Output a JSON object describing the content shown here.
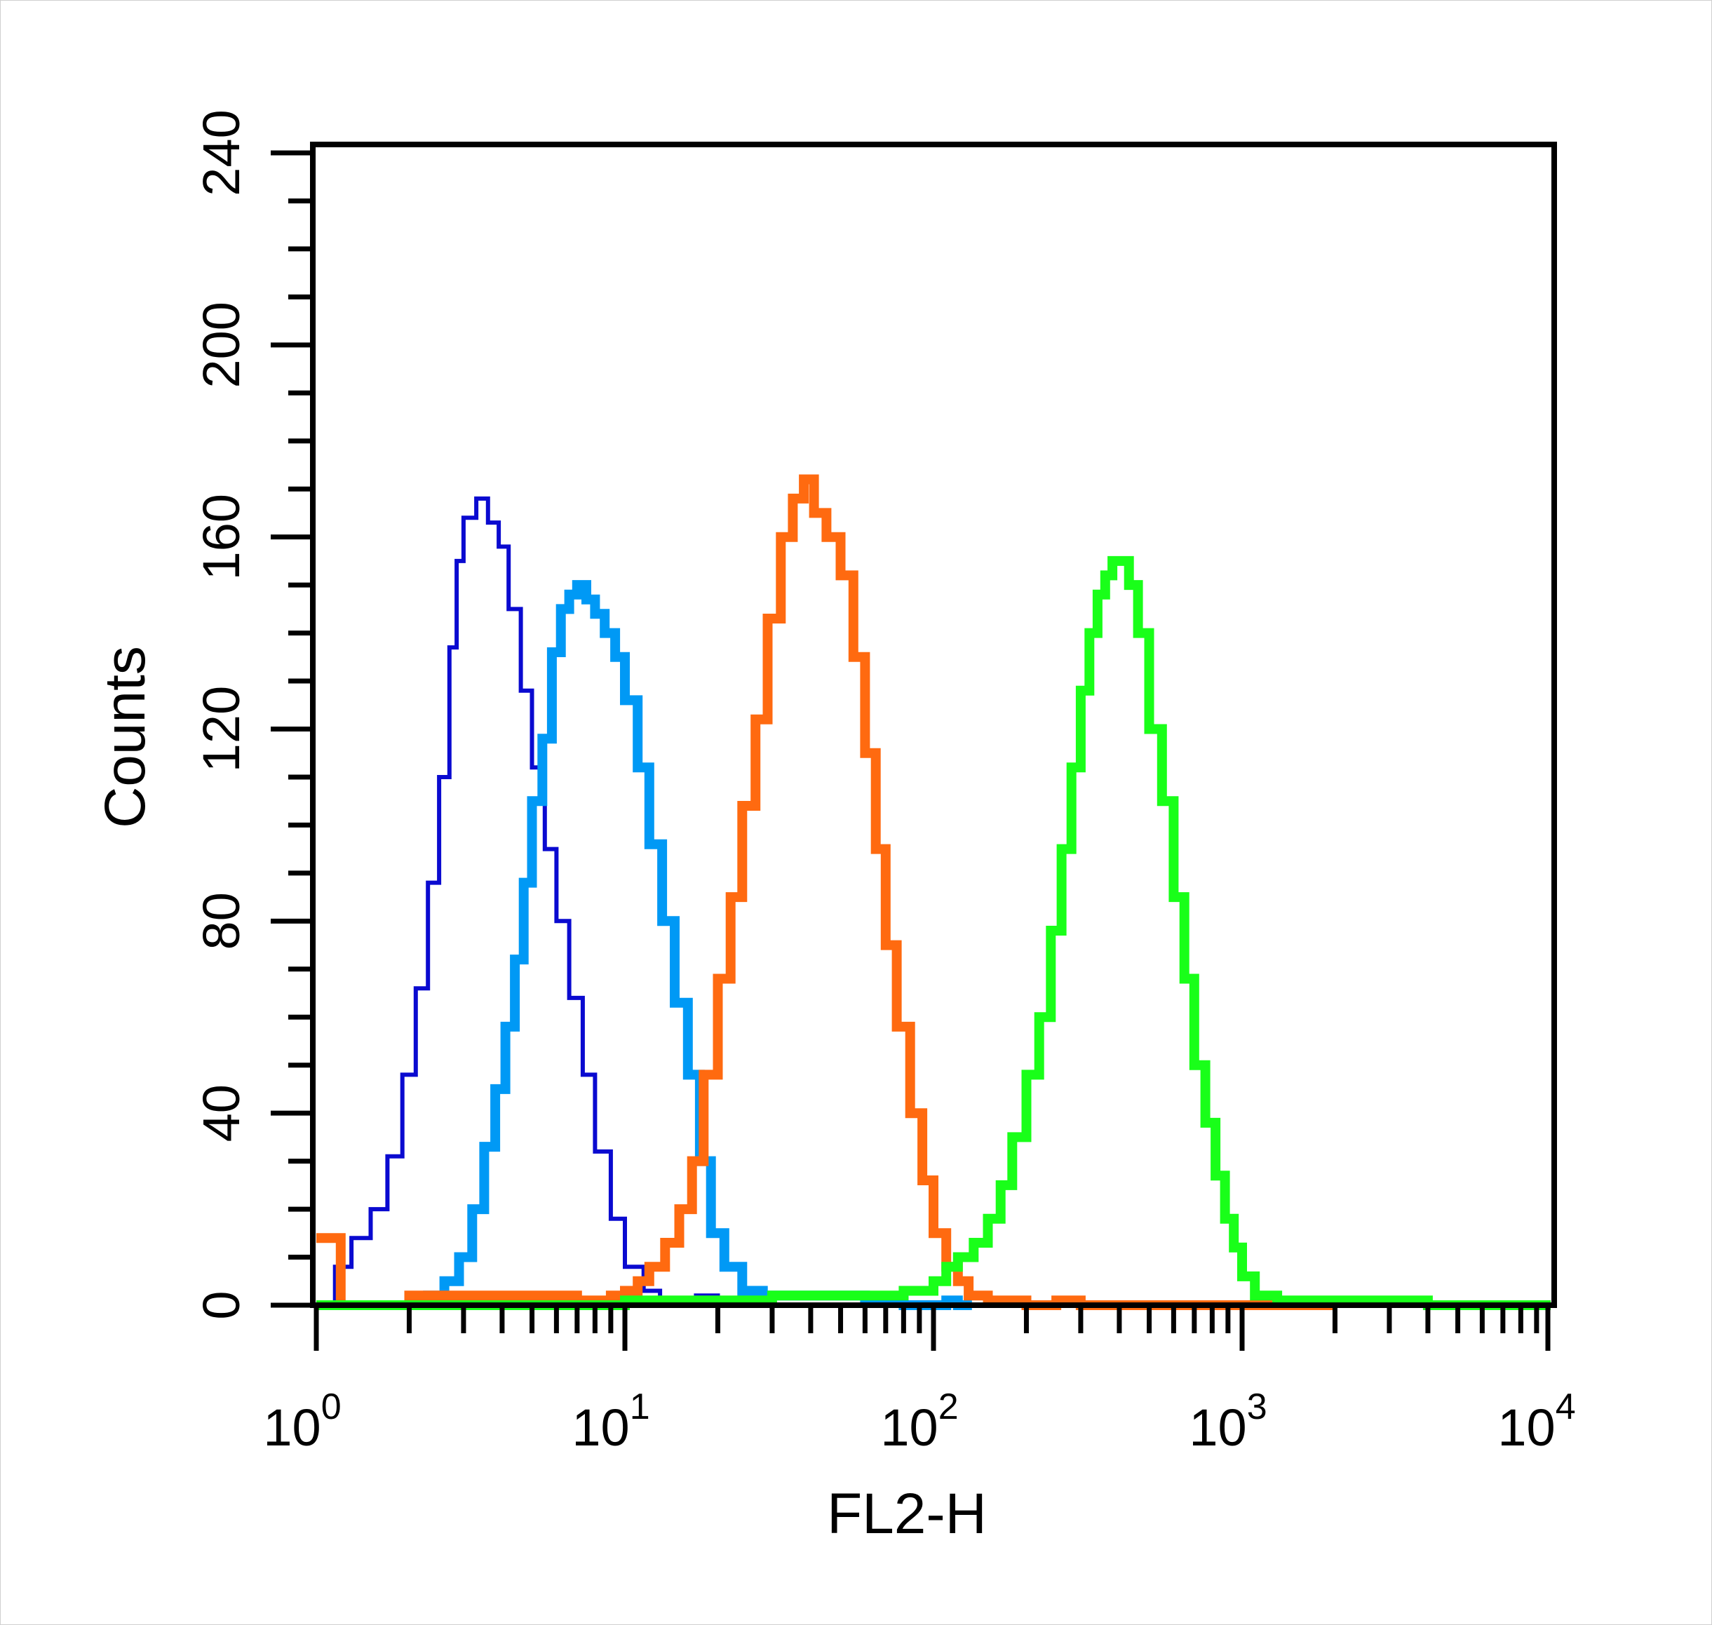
{
  "chart_data": {
    "type": "line",
    "title": "",
    "xlabel": "FL2-H",
    "ylabel": "Counts",
    "x_scale": "log",
    "xlim": [
      1,
      10000
    ],
    "ylim": [
      0,
      240
    ],
    "x_ticks": [
      {
        "base": "10",
        "exp": "0"
      },
      {
        "base": "10",
        "exp": "1"
      },
      {
        "base": "10",
        "exp": "2"
      },
      {
        "base": "10",
        "exp": "3"
      },
      {
        "base": "10",
        "exp": "4"
      }
    ],
    "y_ticks": [
      "0",
      "40",
      "80",
      "120",
      "160",
      "200",
      "240"
    ],
    "grid": false,
    "legend": "none",
    "series": [
      {
        "color": "#0a0ad0",
        "x": [
          1.0,
          1.15,
          1.3,
          1.5,
          1.7,
          1.9,
          2.1,
          2.3,
          2.5,
          2.7,
          2.85,
          3.0,
          3.3,
          3.6,
          3.9,
          4.2,
          4.6,
          5.0,
          5.5,
          6.0,
          6.6,
          7.3,
          8.0,
          9.0,
          10.0,
          11.5,
          13.0,
          15.0,
          17.0,
          20.0,
          25.0,
          30.0,
          50.0,
          100.0
        ],
        "y": [
          0,
          8,
          14,
          20,
          31,
          48,
          66,
          88,
          110,
          137,
          155,
          164,
          168,
          163,
          158,
          145,
          128,
          112,
          95,
          80,
          64,
          48,
          32,
          18,
          8,
          3,
          1,
          0,
          2,
          0,
          0,
          0,
          0,
          0
        ]
      },
      {
        "color": "#0099f5",
        "x": [
          2.0,
          2.3,
          2.6,
          2.9,
          3.2,
          3.5,
          3.8,
          4.1,
          4.4,
          4.7,
          5.0,
          5.4,
          5.8,
          6.2,
          6.6,
          7.0,
          7.5,
          8.0,
          8.6,
          9.3,
          10.0,
          11.0,
          12.0,
          13.2,
          14.5,
          16.0,
          17.5,
          19.0,
          21.0,
          24.0,
          28.0,
          40.0,
          60.0,
          80.0,
          110.0,
          120.0
        ],
        "y": [
          0,
          2,
          5,
          10,
          20,
          33,
          45,
          58,
          72,
          88,
          105,
          118,
          136,
          145,
          148,
          150,
          147,
          144,
          140,
          135,
          126,
          112,
          96,
          80,
          63,
          48,
          30,
          15,
          8,
          3,
          2,
          2,
          1,
          0,
          1,
          0
        ]
      },
      {
        "color": "#ff6a10",
        "x": [
          1.0,
          1.05,
          1.2,
          1.5,
          2.0,
          3.0,
          4.0,
          5.0,
          6.0,
          7.0,
          8.0,
          9.0,
          10.0,
          11.0,
          12.0,
          13.5,
          15.0,
          16.5,
          18.0,
          20.0,
          22.0,
          24.0,
          26.5,
          29.0,
          32.0,
          35.0,
          38.0,
          41.0,
          45.0,
          50.0,
          55.0,
          60.0,
          65.0,
          70.0,
          76.0,
          84.0,
          92.0,
          100.0,
          110.0,
          120.0,
          130.0,
          150.0,
          200.0,
          250.0,
          300.0,
          500.0,
          1000.0,
          1500.0,
          1800.0
        ],
        "y": [
          14,
          14,
          0,
          0,
          2,
          2,
          2,
          2,
          2,
          1,
          1,
          2,
          3,
          5,
          8,
          13,
          20,
          30,
          48,
          68,
          85,
          104,
          122,
          143,
          160,
          168,
          172,
          165,
          160,
          152,
          135,
          115,
          95,
          75,
          58,
          40,
          26,
          15,
          8,
          5,
          2,
          1,
          0,
          1,
          0,
          0,
          0,
          0,
          0
        ]
      },
      {
        "color": "#19ff19",
        "x": [
          1.0,
          5.0,
          10.0,
          15.0,
          20.0,
          30.0,
          50.0,
          80.0,
          100.0,
          110.0,
          120.0,
          135.0,
          150.0,
          165.0,
          180.0,
          200.0,
          220.0,
          240.0,
          260.0,
          280.0,
          300.0,
          320.0,
          340.0,
          360.0,
          380.0,
          400.0,
          430.0,
          460.0,
          500.0,
          550.0,
          600.0,
          650.0,
          700.0,
          760.0,
          820.0,
          880.0,
          940.0,
          1000.0,
          1100.0,
          1300.0,
          1800.0,
          2500.0,
          4000.0,
          10000.0
        ],
        "y": [
          0,
          0,
          1,
          1,
          1,
          2,
          2,
          3,
          5,
          8,
          10,
          13,
          18,
          25,
          35,
          48,
          60,
          78,
          95,
          112,
          128,
          140,
          148,
          152,
          155,
          155,
          150,
          140,
          120,
          105,
          85,
          68,
          50,
          38,
          27,
          18,
          12,
          6,
          2,
          1,
          1,
          1,
          0,
          0
        ]
      }
    ]
  }
}
